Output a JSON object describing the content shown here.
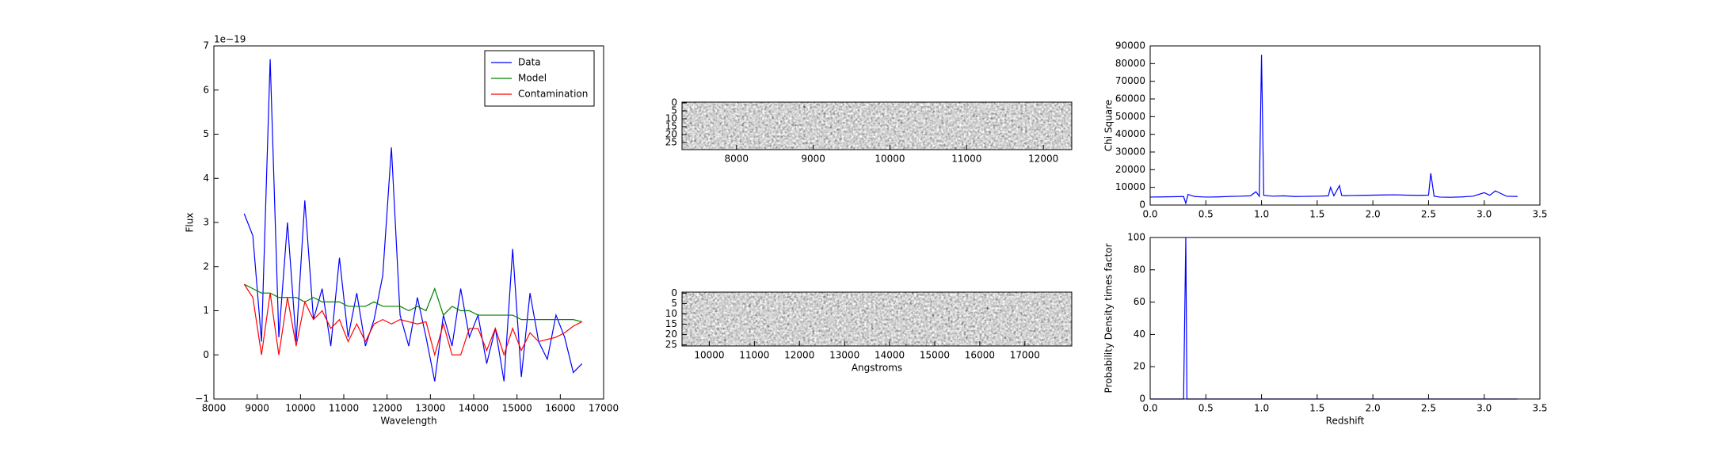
{
  "chart_data": [
    {
      "type": "line",
      "xlabel": "Wavelength",
      "ylabel": "Flux",
      "offset_text": "1e−19",
      "x": [
        8700,
        8900,
        9100,
        9300,
        9500,
        9700,
        9900,
        10100,
        10300,
        10500,
        10700,
        10900,
        11100,
        11300,
        11500,
        11700,
        11900,
        12100,
        12300,
        12500,
        12700,
        12900,
        13100,
        13300,
        13500,
        13700,
        13900,
        14100,
        14300,
        14500,
        14700,
        14900,
        15100,
        15300,
        15500,
        15700,
        15900,
        16100,
        16300,
        16500
      ],
      "series": [
        {
          "name": "Data",
          "color": "#0000ff",
          "values": [
            3.2,
            2.7,
            0.3,
            6.7,
            0.4,
            3.0,
            0.3,
            3.5,
            0.8,
            1.5,
            0.2,
            2.2,
            0.4,
            1.4,
            0.2,
            0.8,
            1.8,
            4.7,
            0.9,
            0.2,
            1.3,
            0.4,
            -0.6,
            0.9,
            0.2,
            1.5,
            0.4,
            0.9,
            -0.2,
            0.6,
            -0.6,
            2.4,
            -0.5,
            1.4,
            0.3,
            -0.1,
            0.9,
            0.4,
            -0.4,
            -0.2
          ]
        },
        {
          "name": "Model",
          "color": "#008000",
          "values": [
            1.6,
            1.5,
            1.4,
            1.4,
            1.3,
            1.3,
            1.3,
            1.2,
            1.3,
            1.2,
            1.2,
            1.2,
            1.1,
            1.1,
            1.1,
            1.2,
            1.1,
            1.1,
            1.1,
            1.0,
            1.1,
            1.0,
            1.5,
            0.9,
            1.1,
            1.0,
            1.0,
            0.9,
            0.9,
            0.9,
            0.9,
            0.9,
            0.8,
            0.8,
            0.8,
            0.8,
            0.8,
            0.8,
            0.8,
            0.75
          ]
        },
        {
          "name": "Contamination",
          "color": "#ff0000",
          "values": [
            1.6,
            1.3,
            0.0,
            1.4,
            0.0,
            1.3,
            0.2,
            1.2,
            0.8,
            1.0,
            0.6,
            0.8,
            0.3,
            0.7,
            0.3,
            0.7,
            0.8,
            0.7,
            0.8,
            0.75,
            0.7,
            0.75,
            0.0,
            0.7,
            0.0,
            0.0,
            0.6,
            0.6,
            0.1,
            0.6,
            0.0,
            0.6,
            0.1,
            0.5,
            0.3,
            0.35,
            0.4,
            0.5,
            0.65,
            0.75
          ]
        }
      ],
      "xlim": [
        8000,
        17000
      ],
      "xticks": [
        8000,
        9000,
        10000,
        11000,
        12000,
        13000,
        14000,
        15000,
        16000,
        17000
      ],
      "ylim": [
        -1,
        7
      ],
      "yticks": [
        {
          "value": -1,
          "label": "−1"
        },
        0,
        1,
        2,
        3,
        4,
        5,
        6,
        7
      ],
      "legend": "upper right"
    },
    {
      "type": "image",
      "xlim": [
        7290,
        12370
      ],
      "xticks": [
        8000,
        9000,
        10000,
        11000,
        12000
      ],
      "ylim": [
        29.5,
        -0.5
      ],
      "yticks": [
        0,
        5,
        10,
        15,
        20,
        25
      ]
    },
    {
      "type": "image",
      "xlabel": "Angstroms",
      "xlim": [
        9395,
        18040
      ],
      "xticks": [
        10000,
        11000,
        12000,
        13000,
        14000,
        15000,
        16000,
        17000
      ],
      "ylim": [
        25.5,
        -0.5
      ],
      "yticks": [
        0,
        5,
        10,
        15,
        20,
        25
      ]
    },
    {
      "type": "line",
      "ylabel": "Chi Square",
      "x": [
        0,
        0.1,
        0.2,
        0.3,
        0.32,
        0.34,
        0.4,
        0.5,
        0.6,
        0.7,
        0.8,
        0.9,
        0.95,
        0.98,
        1.0,
        1.02,
        1.1,
        1.2,
        1.3,
        1.4,
        1.5,
        1.6,
        1.62,
        1.65,
        1.7,
        1.72,
        1.75,
        1.8,
        1.9,
        2.0,
        2.1,
        2.2,
        2.3,
        2.4,
        2.5,
        2.52,
        2.55,
        2.6,
        2.7,
        2.8,
        2.9,
        3.0,
        3.05,
        3.1,
        3.15,
        3.2,
        3.3
      ],
      "series": [
        {
          "color": "#0000ff",
          "values": [
            4500,
            4600,
            4700,
            4800,
            1000,
            6000,
            4800,
            4500,
            4600,
            4800,
            5000,
            5200,
            7500,
            5000,
            85000,
            5500,
            5000,
            5200,
            4800,
            4900,
            5000,
            5200,
            10000,
            5200,
            11000,
            5400,
            5300,
            5400,
            5500,
            5600,
            5700,
            5800,
            5600,
            5500,
            5600,
            18000,
            5000,
            4500,
            4400,
            4600,
            5000,
            7000,
            5500,
            8000,
            6500,
            5000,
            4800
          ]
        }
      ],
      "xlim": [
        0,
        3.5
      ],
      "xticks": [
        {
          "value": 0,
          "label": "0.0"
        },
        0.5,
        {
          "value": 1,
          "label": "1.0"
        },
        1.5,
        {
          "value": 2,
          "label": "2.0"
        },
        2.5,
        {
          "value": 3,
          "label": "3.0"
        },
        3.5
      ],
      "ylim": [
        0,
        90000
      ],
      "yticks": [
        0,
        10000,
        20000,
        30000,
        40000,
        50000,
        60000,
        70000,
        80000,
        90000
      ]
    },
    {
      "type": "line",
      "xlabel": "Redshift",
      "ylabel": "Probability Density times factor",
      "x": [
        0,
        0.3,
        0.31,
        0.32,
        0.33,
        0.34,
        3.3
      ],
      "series": [
        {
          "color": "#0000ff",
          "values": [
            0,
            0,
            50,
            100,
            0,
            0,
            0
          ]
        }
      ],
      "xlim": [
        0,
        3.5
      ],
      "xticks": [
        {
          "value": 0,
          "label": "0.0"
        },
        0.5,
        {
          "value": 1,
          "label": "1.0"
        },
        1.5,
        {
          "value": 2,
          "label": "2.0"
        },
        2.5,
        {
          "value": 3,
          "label": "3.0"
        },
        3.5
      ],
      "ylim": [
        0,
        100
      ],
      "yticks": [
        0,
        20,
        40,
        60,
        80,
        100
      ]
    }
  ]
}
